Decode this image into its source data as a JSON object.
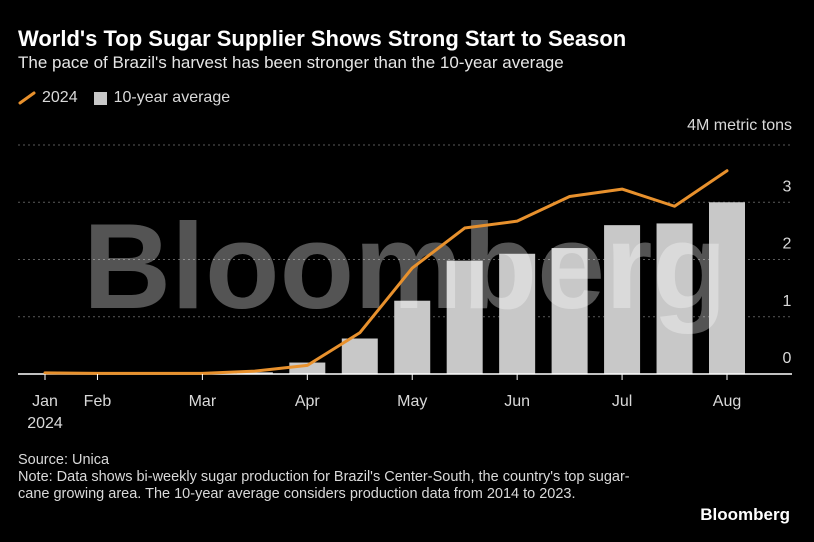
{
  "header": {
    "title": "World's Top Sugar Supplier Shows Strong Start to Season",
    "subtitle": "The pace of Brazil's harvest has been stronger than the 10-year average"
  },
  "legend": {
    "line_label": "2024",
    "bar_label": "10-year average"
  },
  "units_label": "4M metric tons",
  "watermark": "Bloomberg",
  "footer": {
    "source": "Source: Unica",
    "note": "Note: Data shows bi-weekly sugar production for Brazil's Center-South, the country's top sugar-cane growing area. The 10-year average considers production data from 2014 to 2023."
  },
  "brand": "Bloomberg",
  "colors": {
    "line": "#e8912d",
    "bar": "#c8c8c8",
    "grid": "#5a5a5a",
    "axis": "#ffffff"
  },
  "chart_data": {
    "type": "bar",
    "title": "World's Top Sugar Supplier Shows Strong Start to Season",
    "subtitle": "The pace of Brazil's harvest has been stronger than the 10-year average",
    "ylabel": "4M metric tons",
    "ylim": [
      0,
      4
    ],
    "yticks": [
      0,
      1,
      2,
      3
    ],
    "xlim": [
      0,
      13
    ],
    "x_ticks": [
      {
        "label": "Jan",
        "x": 0
      },
      {
        "label": "Feb",
        "x": 1
      },
      {
        "label": "Mar",
        "x": 3
      },
      {
        "label": "Apr",
        "x": 5
      },
      {
        "label": "May",
        "x": 7
      },
      {
        "label": "Jun",
        "x": 9
      },
      {
        "label": "Jul",
        "x": 11
      },
      {
        "label": "Aug",
        "x": 13
      }
    ],
    "x_year_label": "2024",
    "series": [
      {
        "name": "10-year average",
        "type": "bar",
        "x": [
          0,
          1,
          2,
          3,
          4,
          5,
          6,
          7,
          8,
          9,
          10,
          11,
          12,
          13
        ],
        "values": [
          0,
          0,
          0,
          0,
          0.03,
          0.2,
          0.62,
          1.28,
          1.98,
          2.1,
          2.2,
          2.6,
          2.63,
          3.0
        ]
      },
      {
        "name": "2024",
        "type": "line",
        "x": [
          0,
          1,
          2,
          3,
          4,
          5,
          6,
          7,
          8,
          9,
          10,
          11,
          12,
          13
        ],
        "values": [
          0.02,
          0.01,
          0.01,
          0.01,
          0.05,
          0.15,
          0.72,
          1.85,
          2.55,
          2.67,
          3.1,
          3.23,
          2.93,
          3.55
        ]
      }
    ]
  }
}
